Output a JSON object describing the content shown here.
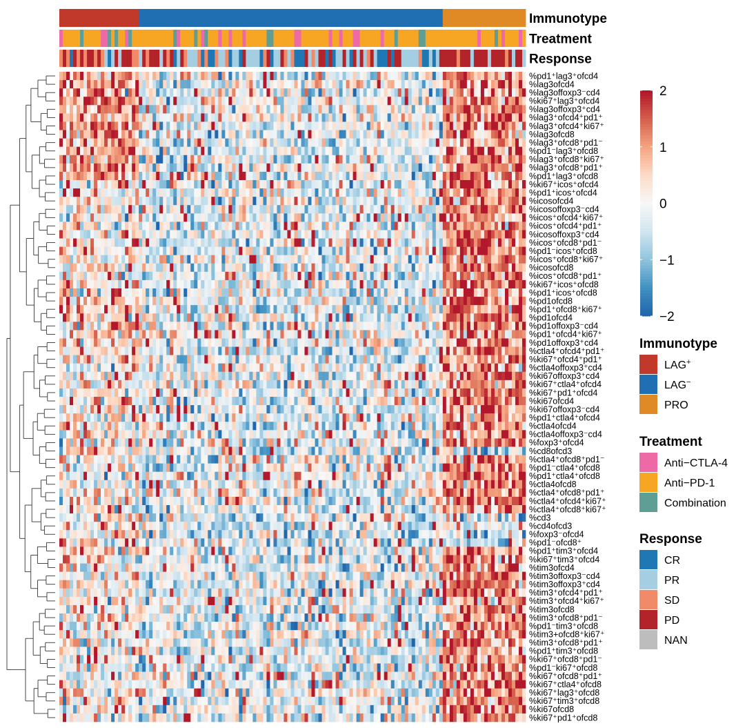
{
  "chart_data": {
    "type": "heatmap",
    "annotations": [
      {
        "title": "Immunotype"
      },
      {
        "title": "Treatment"
      },
      {
        "title": "Response"
      }
    ],
    "rows": [
      "%pd1⁺lag3⁺ofcd4",
      "%lag3ofcd4",
      "%lag3offoxp3⁻cd4",
      "%ki67⁺lag3⁺ofcd4",
      "%lag3offoxp3⁺cd4",
      "%lag3⁺ofcd4⁺pd1⁺",
      "%lag3⁺ofcd4⁺ki67⁺",
      "%lag3ofcd8",
      "%lag3⁺ofcd8⁺pd1⁻",
      "%pd1⁻lag3⁺ofcd8",
      "%lag3⁺ofcd8⁺ki67⁺",
      "%lag3⁺ofcd8⁺pd1⁺",
      "%pd1⁺lag3⁺ofcd8",
      "%ki67⁺icos⁺ofcd4",
      "%pd1⁺icos⁺ofcd4",
      "%icosofcd4",
      "%icosoffoxp3⁻cd4",
      "%icos⁺ofcd4⁺ki67⁺",
      "%icos⁺ofcd4⁺pd1⁺",
      "%icosoffoxp3⁺cd4",
      "%icos⁺ofcd8⁺pd1⁻",
      "%pd1⁻icos⁺ofcd8",
      "%icos⁺ofcd8⁺ki67⁺",
      "%icosofcd8",
      "%icos⁺ofcd8⁺pd1⁺",
      "%ki67⁺icos⁺ofcd8",
      "%pd1⁺icos⁺ofcd8",
      "%pd1ofcd8",
      "%pd1⁺ofcd8⁺ki67⁺",
      "%pd1ofcd4",
      "%pd1offoxp3⁻cd4",
      "%pd1⁺ofcd4⁺ki67⁺",
      "%pd1offoxp3⁺cd4",
      "%ctla4⁺ofcd4⁺pd1⁺",
      "%ki67⁺ofcd4⁺pd1⁺",
      "%ctla4offoxp3⁺cd4",
      "%ki67offoxp3⁺cd4",
      "%ki67⁺ctla4⁺ofcd4",
      "%ki67⁺pd1⁺ofcd4",
      "%ki67ofcd4",
      "%ki67offoxp3⁻cd4",
      "%pd1⁺ctla4⁺ofcd4",
      "%ctla4ofcd4",
      "%ctla4offoxp3⁻cd4",
      "%foxp3⁺ofcd4",
      "%cd8ofcd3",
      "%ctla4⁺ofcd8⁺pd1⁻",
      "%pd1⁻ctla4⁺ofcd8",
      "%pd1⁺ctla4⁺ofcd8",
      "%ctla4ofcd8",
      "%ctla4⁺ofcd8⁺pd1⁺",
      "%ctla4⁺ofcd4⁺ki67⁺",
      "%ctla4⁺ofcd8⁺ki67⁺",
      "%cd3",
      "%cd4ofcd3",
      "%foxp3⁻ofcd4",
      "%pd1⁻ofcd8⁺",
      "%pd1⁺tim3⁺ofcd4",
      "%ki67⁺tim3⁺ofcd4",
      "%tim3ofcd4",
      "%tim3offoxp3⁻cd4",
      "%tim3offoxp3⁺cd4",
      "%tim3⁺ofcd4⁺pd1⁺",
      "%tim3⁺ofcd4⁺ki67⁺",
      "%tim3ofcd8",
      "%tim3⁺ofcd8⁺pd1⁻",
      "%pd1⁻tim3⁺ofcd8",
      "%tim3+ofcd8⁺ki67⁺",
      "%tim3⁺ofcd8⁺pd1⁺",
      "%pd1⁺tim3⁺ofcd8",
      "%ki67⁺ofcd8⁺pd1⁻",
      "%pd1⁻ki67⁺ofcd8",
      "%ki67⁺ofcd8⁺pd1⁺",
      "%ki67⁺ctla4⁺ofcd8",
      "%ki67⁺lag3⁺ofcd8",
      "%ki67⁺tim3⁺ofcd8",
      "%ki67ofcd8",
      "%ki67⁺pd1⁺ofcd8"
    ],
    "column_groups": [
      {
        "immunotype": "LAG⁺",
        "count": 23
      },
      {
        "immunotype": "LAG⁻",
        "count": 88
      },
      {
        "immunotype": "PRO",
        "count": 24
      }
    ],
    "colorscale": {
      "ticks": [
        2,
        1,
        0,
        -1,
        -2
      ],
      "tick_labels": [
        "2",
        "1",
        "0",
        "−1",
        "−2"
      ],
      "range": [
        -2,
        2
      ],
      "colors": [
        "#2166ac",
        "#4393c3",
        "#92c5de",
        "#d1e5f0",
        "#f7f7f7",
        "#fddbc7",
        "#f4a582",
        "#d6604d",
        "#b2182b"
      ]
    },
    "legends": [
      {
        "title": "Immunotype",
        "items": [
          {
            "label": "LAG",
            "sup": "+",
            "color": "#c0392b"
          },
          {
            "label": "LAG",
            "sup": "−",
            "color": "#1f6fb2"
          },
          {
            "label": "PRO",
            "sup": "",
            "color": "#e08a26"
          }
        ]
      },
      {
        "title": "Treatment",
        "items": [
          {
            "label": "Anti−CTLA-4",
            "sup": "",
            "color": "#ee6aa7"
          },
          {
            "label": "Anti−PD-1",
            "sup": "",
            "color": "#f6a623"
          },
          {
            "label": "Combination",
            "sup": "",
            "color": "#5f9e95"
          }
        ]
      },
      {
        "title": "Response",
        "items": [
          {
            "label": "CR",
            "sup": "",
            "color": "#1f78b4"
          },
          {
            "label": "PR",
            "sup": "",
            "color": "#a6cee3"
          },
          {
            "label": "SD",
            "sup": "",
            "color": "#f08a68"
          },
          {
            "label": "PD",
            "sup": "",
            "color": "#b2242a"
          },
          {
            "label": "NAN",
            "sup": "",
            "color": "#bdbdbd"
          }
        ]
      }
    ]
  }
}
